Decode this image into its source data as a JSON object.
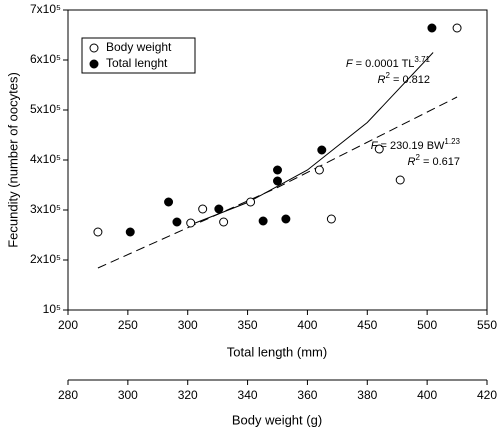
{
  "chart_data": {
    "type": "scatter",
    "ylabel": "Fecundity (number of oocytes)",
    "xlabel": "Total length (mm)",
    "x2label": "Body weight (g)",
    "xlim": [
      200,
      550
    ],
    "xticks": [
      200,
      250,
      300,
      350,
      400,
      450,
      500,
      550
    ],
    "x2lim": [
      280,
      420
    ],
    "x2ticks": [
      280,
      300,
      320,
      340,
      360,
      380,
      400,
      420
    ],
    "ylim": [
      100000,
      700000
    ],
    "yticks": [
      {
        "value": 100000,
        "label": "10⁵"
      },
      {
        "value": 200000,
        "label": "2x10⁵"
      },
      {
        "value": 300000,
        "label": "3x10⁵"
      },
      {
        "value": 400000,
        "label": "4x10⁵"
      },
      {
        "value": 500000,
        "label": "5x10⁵"
      },
      {
        "value": 600000,
        "label": "6x10⁵"
      },
      {
        "value": 700000,
        "label": "7x10⁵"
      }
    ],
    "legend": "top-left",
    "series": [
      {
        "name": "Body weight",
        "marker": "open",
        "color": "#000000",
        "axis": "x2",
        "x": [
          290,
          321,
          325,
          332,
          341,
          364,
          368,
          384,
          391,
          410
        ],
        "values": [
          256000,
          274000,
          302000,
          276000,
          316000,
          380000,
          282000,
          422000,
          360000,
          664000
        ]
      },
      {
        "name": "Total lenght",
        "marker": "filled",
        "color": "#000000",
        "axis": "x",
        "x": [
          252,
          284,
          291,
          326,
          363,
          375,
          375,
          382,
          412,
          504
        ],
        "values": [
          256000,
          316000,
          276000,
          302000,
          278000,
          380000,
          358000,
          282000,
          420000,
          664000
        ]
      }
    ],
    "fit_lines": [
      {
        "axis": "x",
        "style": "solid",
        "x": [
          302,
          350,
          400,
          450,
          505
        ],
        "values": [
          270000,
          315000,
          380000,
          475000,
          615000
        ]
      },
      {
        "axis": "x2",
        "style": "dashed",
        "x": [
          290,
          350,
          410
        ],
        "values": [
          184000,
          345000,
          526000
        ]
      }
    ],
    "annotations": [
      {
        "segments": [
          {
            "text": "F",
            "italic": true
          },
          {
            "text": " = 0.0001 TL"
          },
          {
            "text": "3.71",
            "sup": true
          }
        ]
      },
      {
        "segments": [
          {
            "text": "R",
            "italic": true
          },
          {
            "text": "2",
            "sup": true
          },
          {
            "text": " = 0.812"
          }
        ]
      },
      {
        "segments": [
          {
            "text": "F",
            "italic": true
          },
          {
            "text": " = 230.19 BW"
          },
          {
            "text": "1.23",
            "sup": true
          }
        ]
      },
      {
        "segments": [
          {
            "text": "R",
            "italic": true
          },
          {
            "text": "2",
            "sup": true
          },
          {
            "text": " = 0.617"
          }
        ]
      }
    ]
  }
}
